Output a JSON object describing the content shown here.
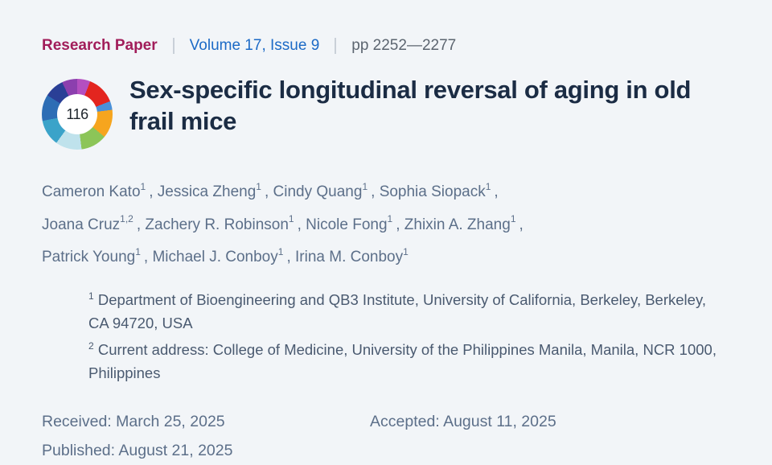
{
  "meta": {
    "category": "Research Paper",
    "volume": "Volume 17, Issue 9",
    "pages": "pp 2252—2277"
  },
  "badge": {
    "score": "116"
  },
  "title": "Sex-specific longitudinal reversal of aging in old frail mice",
  "author_separator": ",",
  "authors": [
    {
      "name": "Cameron Kato",
      "sup": "1"
    },
    {
      "name": "Jessica Zheng",
      "sup": "1"
    },
    {
      "name": "Cindy Quang",
      "sup": "1"
    },
    {
      "name": "Sophia Siopack",
      "sup": "1"
    },
    {
      "name": "Joana Cruz",
      "sup": "1,2"
    },
    {
      "name": "Zachery R. Robinson",
      "sup": "1"
    },
    {
      "name": "Nicole Fong",
      "sup": "1"
    },
    {
      "name": "Zhixin A. Zhang",
      "sup": "1"
    },
    {
      "name": "Patrick Young",
      "sup": "1"
    },
    {
      "name": "Michael J. Conboy",
      "sup": "1"
    },
    {
      "name": "Irina M. Conboy",
      "sup": "1"
    }
  ],
  "affiliations": [
    {
      "sup": "1",
      "text": "Department of Bioengineering and QB3 Institute, University of California, Berkeley, Berkeley, CA 94720, USA"
    },
    {
      "sup": "2",
      "text": "Current address: College of Medicine, University of the Philippines Manila, Manila, NCR 1000, Philippines"
    }
  ],
  "dates": {
    "received_label": "Received:",
    "received_value": "March 25, 2025",
    "accepted_label": "Accepted:",
    "accepted_value": "August 11, 2025",
    "published_label": "Published:",
    "published_value": "August 21, 2025"
  },
  "colors": {
    "bg": "#f2f5f8",
    "category": "#a11d5a",
    "link": "#1c6ac6",
    "pages": "#5c6570",
    "title": "#1b2c44",
    "authors": "#5c6f89",
    "affil": "#4a5a70",
    "divider": "#c9d0d8"
  }
}
